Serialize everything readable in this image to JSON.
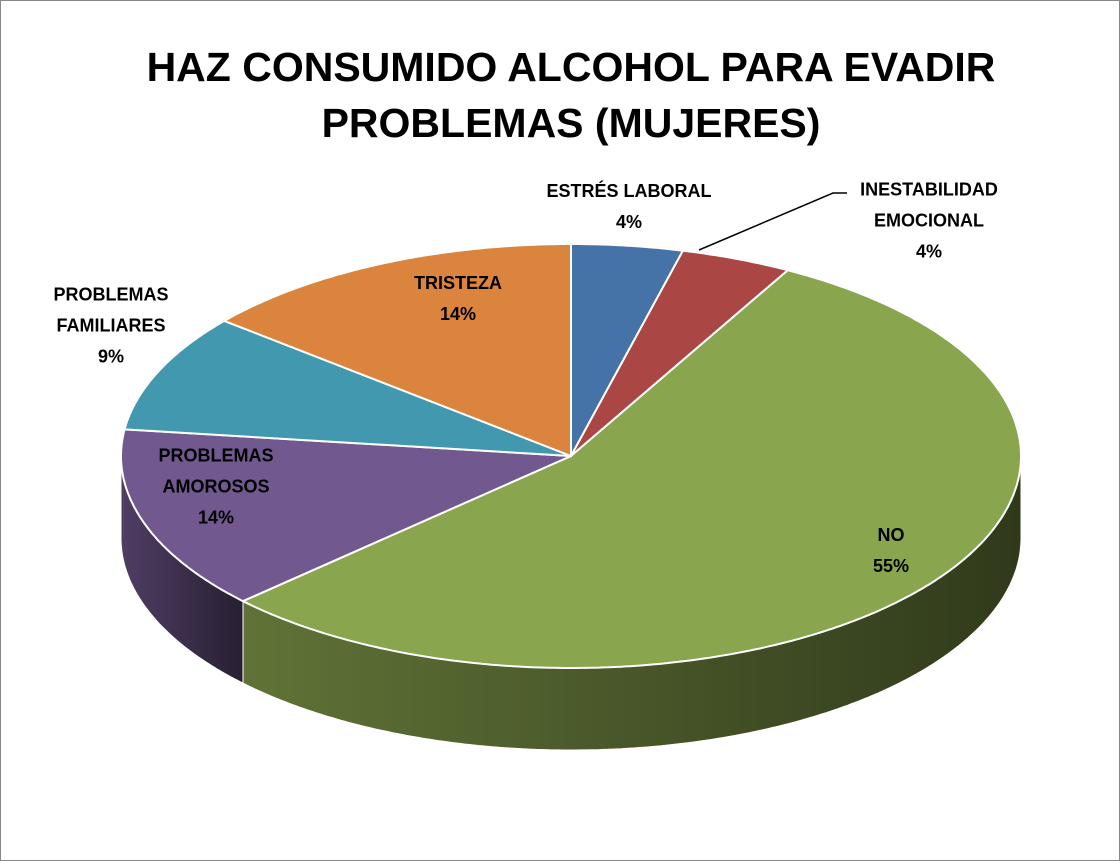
{
  "chart_data": {
    "type": "pie",
    "title": "HAZ CONSUMIDO ALCOHOL PARA EVADIR PROBLEMAS (MUJERES)",
    "categories": [
      "ESTRÉS LABORAL",
      "INESTABILIDAD EMOCIONAL",
      "NO",
      "PROBLEMAS AMOROSOS",
      "PROBLEMAS FAMILIARES",
      "TRISTEZA"
    ],
    "values": [
      4,
      4,
      55,
      14,
      9,
      14
    ],
    "value_labels": [
      "4%",
      "4%",
      "55%",
      "14%",
      "9%",
      "14%"
    ],
    "colors": [
      "#4572a7",
      "#aa4643",
      "#89a54e",
      "#71588f",
      "#4198af",
      "#db843d"
    ]
  }
}
